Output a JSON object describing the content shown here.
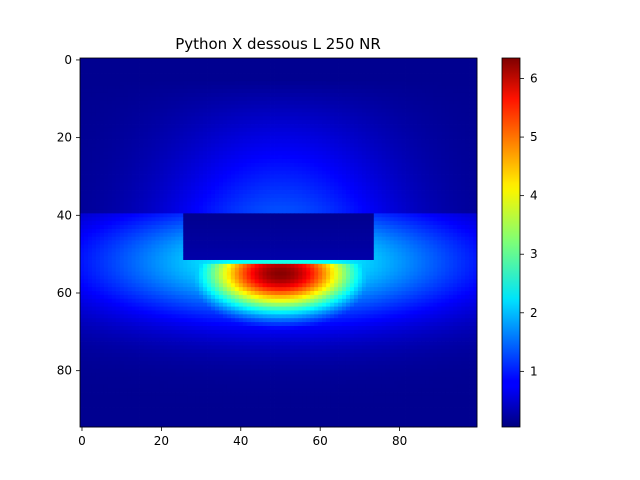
{
  "chart_data": {
    "type": "heatmap",
    "title": "Python X dessous L 250 NR",
    "xlabel": "",
    "ylabel": "",
    "colormap": "jet",
    "shape": [
      95,
      100
    ],
    "xlim": [
      -0.5,
      99.5
    ],
    "ylim": [
      94.5,
      -0.5
    ],
    "xticks": [
      0,
      20,
      40,
      60,
      80
    ],
    "yticks": [
      0,
      20,
      40,
      60,
      80
    ],
    "colorbar": {
      "vmin": 0.05,
      "vmax": 6.35,
      "ticks": [
        1,
        2,
        3,
        4,
        5,
        6
      ]
    },
    "regions": [
      {
        "label": "top field",
        "rows": [
          0,
          39
        ],
        "cols": [
          0,
          99
        ],
        "value_range": [
          0.1,
          1.3
        ]
      },
      {
        "label": "dark rectangle",
        "rows": [
          40,
          51
        ],
        "cols": [
          26,
          73
        ],
        "value_range": [
          0.1,
          0.4
        ]
      },
      {
        "label": "peak lobe",
        "rows": [
          53,
          70
        ],
        "cols": [
          30,
          70
        ],
        "peak_value": 6.3,
        "peak_center": [
          55,
          50
        ]
      },
      {
        "label": "halo",
        "rows": [
          45,
          80
        ],
        "cols": [
          0,
          99
        ],
        "value_range": [
          0.8,
          2.5
        ]
      }
    ]
  }
}
